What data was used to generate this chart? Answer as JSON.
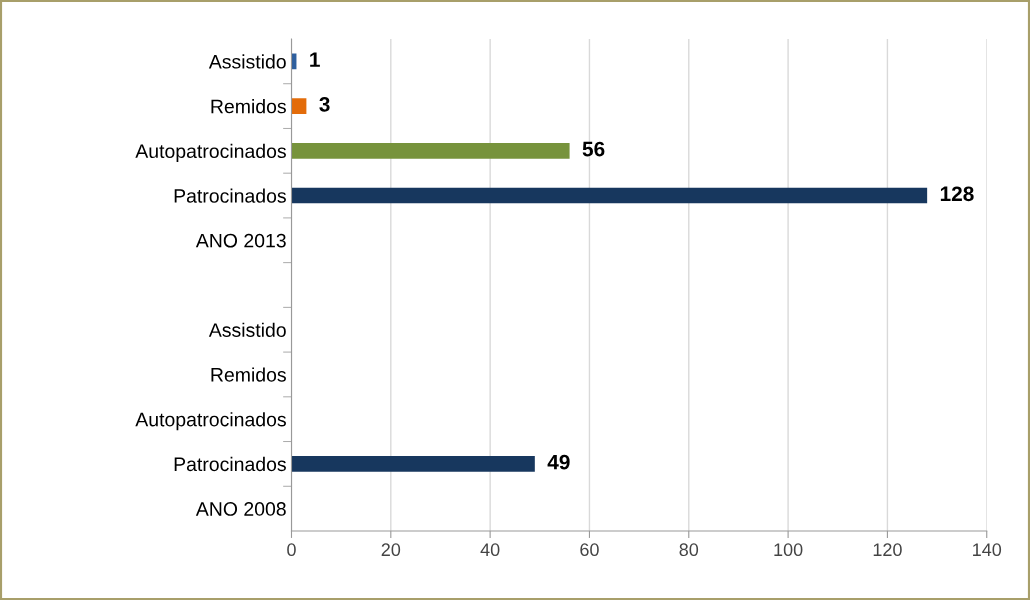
{
  "chart_data": {
    "type": "bar",
    "orientation": "horizontal",
    "categories": [
      "Assistido",
      "Remidos",
      "Autopatrocinados",
      "Patrocinados",
      "ANO 2013",
      null,
      "Assistido",
      "Remidos",
      "Autopatrocinados",
      "Patrocinados",
      "ANO 2008"
    ],
    "values": [
      1,
      3,
      56,
      128,
      null,
      null,
      null,
      null,
      null,
      49,
      null
    ],
    "colors": [
      "#2e5f9e",
      "#e36c0a",
      "#77933c",
      "#17375e",
      "#17375e",
      "#17375e",
      "#17375e",
      "#e36c0a",
      "#77933c",
      "#17375e",
      "#17375e"
    ],
    "value_labels": [
      "1",
      "3",
      "56",
      "128",
      null,
      null,
      null,
      null,
      null,
      "49",
      null
    ],
    "xlim": [
      0,
      140
    ],
    "xticks": [
      0,
      20,
      40,
      60,
      80,
      100,
      120,
      140
    ],
    "grid": "x",
    "legend": false
  }
}
